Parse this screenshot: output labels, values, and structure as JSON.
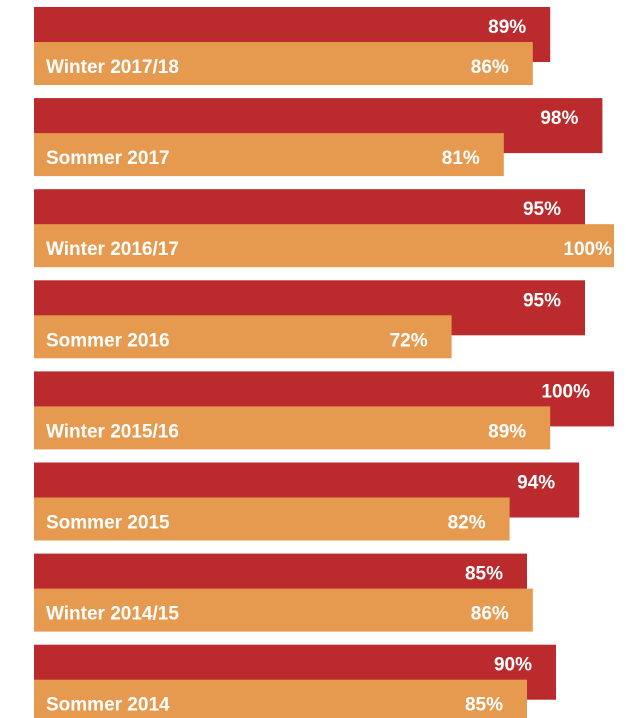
{
  "chart_data": {
    "type": "bar",
    "orientation": "horizontal",
    "categories": [
      "Winter 2017/18",
      "Sommer 2017",
      "Winter 2016/17",
      "Sommer 2016",
      "Winter 2015/16",
      "Sommer 2015",
      "Winter 2014/15",
      "Sommer 2014"
    ],
    "series": [
      {
        "values": [
          89,
          98,
          95,
          95,
          100,
          94,
          85,
          90
        ],
        "labels": [
          "89%",
          "98%",
          "95%",
          "95%",
          "100%",
          "94%",
          "85%",
          "90%"
        ],
        "color": "#bb2a2c"
      },
      {
        "values": [
          86,
          81,
          100,
          72,
          89,
          82,
          86,
          85
        ],
        "labels": [
          "86%",
          "81%",
          "100%",
          "72%",
          "89%",
          "82%",
          "86%",
          "85%"
        ],
        "color": "#e69a4f"
      }
    ],
    "xlim": [
      0,
      100
    ],
    "grid": false,
    "legend": "none"
  }
}
